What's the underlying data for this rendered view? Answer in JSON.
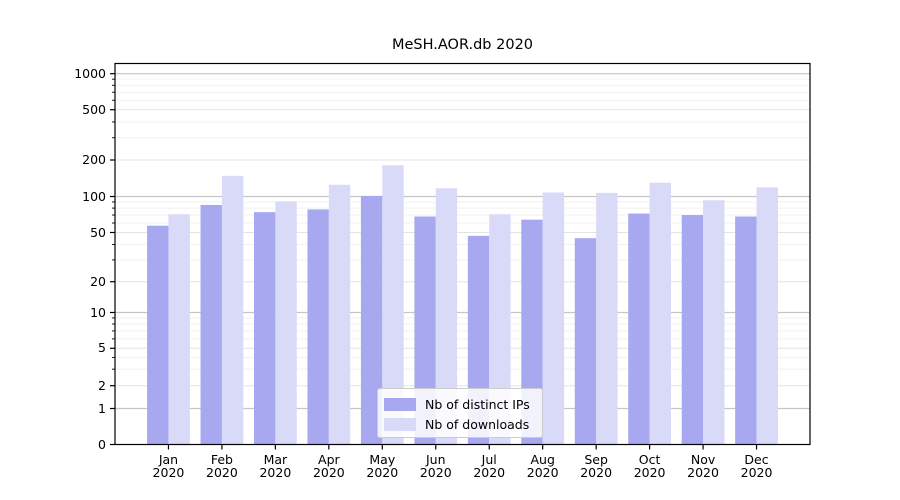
{
  "figure": {
    "background": "#ffffff"
  },
  "chart_data": {
    "type": "bar",
    "title": "MeSH.AOR.db 2020",
    "year_label": "2020",
    "categories": [
      "Jan",
      "Feb",
      "Mar",
      "Apr",
      "May",
      "Jun",
      "Jul",
      "Aug",
      "Sep",
      "Oct",
      "Nov",
      "Dec"
    ],
    "series": [
      {
        "name": "Nb of distinct IPs",
        "color": "#a8a8f0",
        "values": [
          57,
          85,
          74,
          78,
          101,
          68,
          47,
          64,
          45,
          72,
          70,
          68
        ]
      },
      {
        "name": "Nb of downloads",
        "color": "#d9d9f8",
        "values": [
          71,
          148,
          91,
          125,
          181,
          117,
          71,
          108,
          107,
          130,
          93,
          119
        ]
      }
    ],
    "xlabel": "",
    "ylabel": "",
    "yscale": "symlog",
    "ylim": [
      0,
      1200
    ],
    "ytick_values": [
      0,
      1,
      2,
      5,
      10,
      20,
      50,
      100,
      200,
      500,
      1000
    ],
    "ytick_labels": [
      "0",
      "1",
      "2",
      "5",
      "10",
      "20",
      "50",
      "100",
      "200",
      "500",
      "1000"
    ],
    "minor_tick_values": [
      3,
      4,
      6,
      7,
      8,
      9,
      30,
      40,
      60,
      70,
      80,
      90,
      300,
      400,
      600,
      700,
      800,
      900
    ],
    "grid": "both",
    "legend_position": "lower center",
    "grid_major_color": "#c6c6c6",
    "grid_mid_color": "#e4e4e4",
    "grid_minor_color": "#f1f1f1",
    "spine_color": "#000000"
  }
}
